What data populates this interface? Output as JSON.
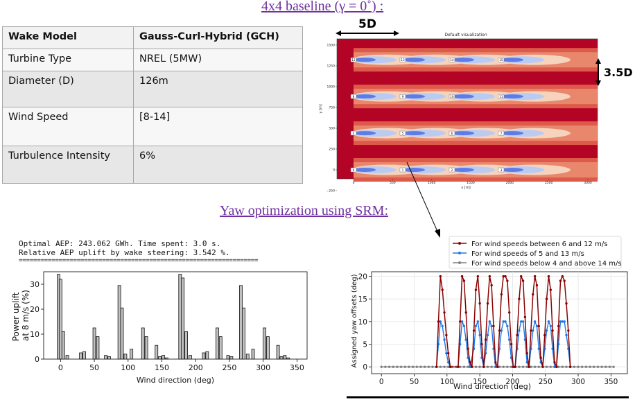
{
  "header": {
    "baseline_title": "4x4 baseline (γ  = 0˚) :",
    "yaw_title": "Yaw optimization using SRM:"
  },
  "params_table": {
    "rows": [
      {
        "label": "Wake Model",
        "value": "Gauss-Curl-Hybrid (GCH)"
      },
      {
        "label": "Turbine Type",
        "value": "NREL (5MW)"
      },
      {
        "label": "Diameter (D)",
        "value": "126m"
      },
      {
        "label": "Wind Speed",
        "value": "[8-14]"
      },
      {
        "label": "Turbulence Intensity",
        "value": "6%"
      }
    ]
  },
  "flow_viz": {
    "title": "Default visualization",
    "spacing_x_label": "5D",
    "spacing_y_label": "3.5D",
    "xlabel": "x [m]",
    "ylabel": "y [m]",
    "x_ticks": [
      "0",
      "500",
      "1000",
      "1500",
      "2000",
      "2500",
      "3000"
    ],
    "y_ticks": [
      "1500",
      "1250",
      "1000",
      "750",
      "500",
      "250",
      "0",
      "−250"
    ],
    "turbine_rows": [
      {
        "y": 1323,
        "labels": [
          "12",
          "13",
          "14",
          "15"
        ]
      },
      {
        "y": 882,
        "labels": [
          "8",
          "9",
          "10",
          "11"
        ]
      },
      {
        "y": 441,
        "labels": [
          "4",
          "5",
          "6",
          "7"
        ]
      },
      {
        "y": 0,
        "labels": [
          "0",
          "1",
          "2",
          "3"
        ]
      }
    ],
    "turbine_x": [
      0,
      630,
      1260,
      1890
    ],
    "colors": {
      "background": "#b40426",
      "wake_light": "#f4c6a8",
      "wake_blue": "#5d7ce6"
    }
  },
  "console": {
    "line1": "Optimal AEP: 243.062 GWh. Time spent: 3.0 s.",
    "line2": "Relative AEP uplift by wake steering: 3.542 %.",
    "separator": "=================================================================="
  },
  "chart_data": [
    {
      "type": "bar",
      "xlabel": "Wind direction (deg)",
      "ylabel": "Power uplift\nat 8 m/s (%)",
      "xlim": [
        -25,
        365
      ],
      "ylim": [
        0,
        35
      ],
      "x_ticks": [
        0,
        50,
        100,
        150,
        200,
        250,
        300,
        350
      ],
      "y_ticks": [
        0,
        10,
        20,
        30
      ],
      "bars": [
        {
          "x": -3,
          "v": 34
        },
        {
          "x": 0,
          "v": 32
        },
        {
          "x": 4,
          "v": 11
        },
        {
          "x": 10,
          "v": 1.5
        },
        {
          "x": 30,
          "v": 2.5
        },
        {
          "x": 35,
          "v": 3
        },
        {
          "x": 50,
          "v": 12.5
        },
        {
          "x": 55,
          "v": 9
        },
        {
          "x": 67,
          "v": 1.5
        },
        {
          "x": 72,
          "v": 1
        },
        {
          "x": 87,
          "v": 29.5
        },
        {
          "x": 91,
          "v": 20.5
        },
        {
          "x": 96,
          "v": 2
        },
        {
          "x": 105,
          "v": 4
        },
        {
          "x": 122,
          "v": 12.5
        },
        {
          "x": 127,
          "v": 9
        },
        {
          "x": 142,
          "v": 5.5
        },
        {
          "x": 147,
          "v": 1
        },
        {
          "x": 152,
          "v": 1.5
        },
        {
          "x": 157,
          "v": 0.5
        },
        {
          "x": 177,
          "v": 34
        },
        {
          "x": 181,
          "v": 32.5
        },
        {
          "x": 186,
          "v": 11
        },
        {
          "x": 192,
          "v": 1.5
        },
        {
          "x": 212,
          "v": 2.5
        },
        {
          "x": 217,
          "v": 3
        },
        {
          "x": 232,
          "v": 12.5
        },
        {
          "x": 237,
          "v": 9
        },
        {
          "x": 248,
          "v": 1.5
        },
        {
          "x": 253,
          "v": 1
        },
        {
          "x": 267,
          "v": 29.5
        },
        {
          "x": 271,
          "v": 20.5
        },
        {
          "x": 277,
          "v": 2
        },
        {
          "x": 285,
          "v": 4
        },
        {
          "x": 302,
          "v": 12.5
        },
        {
          "x": 307,
          "v": 9
        },
        {
          "x": 322,
          "v": 5.5
        },
        {
          "x": 327,
          "v": 1
        },
        {
          "x": 332,
          "v": 1.5
        },
        {
          "x": 337,
          "v": 0.5
        }
      ]
    },
    {
      "type": "line",
      "xlabel": "Wind direction (deg)",
      "ylabel": "Assigned yaw offsets (deg)",
      "xlim": [
        -15,
        375
      ],
      "ylim": [
        -1.5,
        21
      ],
      "x_ticks": [
        0,
        50,
        100,
        150,
        200,
        250,
        300,
        350
      ],
      "y_ticks": [
        0,
        5,
        10,
        15,
        20
      ],
      "legend_position": "top-right",
      "series": [
        {
          "name": "For wind speeds between 6 and 12 m/s",
          "color": "#8b0000",
          "points": [
            [
              84,
              0
            ],
            [
              87,
              10
            ],
            [
              90,
              20
            ],
            [
              93,
              17
            ],
            [
              96,
              12
            ],
            [
              99,
              7
            ],
            [
              102,
              3
            ],
            [
              105,
              0
            ],
            [
              117,
              0
            ],
            [
              120,
              10
            ],
            [
              123,
              20
            ],
            [
              126,
              19
            ],
            [
              129,
              12
            ],
            [
              132,
              4
            ],
            [
              135,
              1
            ],
            [
              138,
              0
            ],
            [
              141,
              8
            ],
            [
              144,
              17
            ],
            [
              147,
              20
            ],
            [
              150,
              14
            ],
            [
              153,
              5
            ],
            [
              156,
              0
            ],
            [
              159,
              6
            ],
            [
              162,
              14
            ],
            [
              165,
              20
            ],
            [
              168,
              18
            ],
            [
              171,
              9
            ],
            [
              174,
              1
            ],
            [
              177,
              0
            ],
            [
              180,
              8
            ],
            [
              183,
              16
            ],
            [
              186,
              20
            ],
            [
              189,
              20
            ],
            [
              192,
              19
            ],
            [
              195,
              12
            ],
            [
              198,
              5
            ],
            [
              201,
              0
            ],
            [
              204,
              0
            ],
            [
              207,
              7
            ],
            [
              210,
              15
            ],
            [
              213,
              20
            ],
            [
              216,
              19
            ],
            [
              219,
              11
            ],
            [
              222,
              3
            ],
            [
              225,
              0
            ],
            [
              228,
              8
            ],
            [
              231,
              16
            ],
            [
              234,
              20
            ],
            [
              237,
              18
            ],
            [
              240,
              9
            ],
            [
              243,
              2
            ],
            [
              246,
              0
            ],
            [
              249,
              7
            ],
            [
              252,
              15
            ],
            [
              255,
              20
            ],
            [
              258,
              17
            ],
            [
              261,
              8
            ],
            [
              264,
              1
            ],
            [
              267,
              0
            ],
            [
              270,
              9
            ],
            [
              273,
              19
            ],
            [
              276,
              20
            ],
            [
              279,
              19
            ],
            [
              282,
              14
            ],
            [
              285,
              8
            ],
            [
              288,
              0
            ]
          ]
        },
        {
          "name": "For wind speeds of 5 and 13 m/s",
          "color": "#1f77e4",
          "points": [
            [
              84,
              0
            ],
            [
              87,
              5
            ],
            [
              90,
              10
            ],
            [
              93,
              9
            ],
            [
              96,
              6
            ],
            [
              99,
              3
            ],
            [
              102,
              1
            ],
            [
              105,
              0
            ],
            [
              117,
              0
            ],
            [
              120,
              5
            ],
            [
              123,
              10
            ],
            [
              126,
              9
            ],
            [
              129,
              6
            ],
            [
              132,
              2
            ],
            [
              135,
              0
            ],
            [
              141,
              4
            ],
            [
              144,
              9
            ],
            [
              147,
              10
            ],
            [
              150,
              7
            ],
            [
              153,
              2
            ],
            [
              156,
              0
            ],
            [
              159,
              3
            ],
            [
              162,
              7
            ],
            [
              165,
              10
            ],
            [
              168,
              9
            ],
            [
              171,
              4
            ],
            [
              174,
              0
            ],
            [
              177,
              0
            ],
            [
              180,
              4
            ],
            [
              183,
              8
            ],
            [
              186,
              10
            ],
            [
              189,
              10
            ],
            [
              192,
              9
            ],
            [
              195,
              6
            ],
            [
              198,
              2
            ],
            [
              201,
              0
            ],
            [
              204,
              0
            ],
            [
              207,
              4
            ],
            [
              210,
              8
            ],
            [
              213,
              10
            ],
            [
              216,
              10
            ],
            [
              219,
              6
            ],
            [
              222,
              1
            ],
            [
              225,
              0
            ],
            [
              228,
              4
            ],
            [
              231,
              8
            ],
            [
              234,
              10
            ],
            [
              237,
              9
            ],
            [
              240,
              4
            ],
            [
              243,
              1
            ],
            [
              246,
              0
            ],
            [
              249,
              4
            ],
            [
              252,
              8
            ],
            [
              255,
              10
            ],
            [
              258,
              9
            ],
            [
              261,
              4
            ],
            [
              264,
              0
            ],
            [
              267,
              0
            ],
            [
              270,
              5
            ],
            [
              273,
              10
            ],
            [
              276,
              10
            ],
            [
              279,
              10
            ],
            [
              282,
              7
            ],
            [
              285,
              4
            ],
            [
              288,
              0
            ]
          ]
        },
        {
          "name": "For wind speeds below 4 and above 14 m/s",
          "color": "#808080",
          "flat_from": 0,
          "flat_to": 357,
          "flat_step": 6
        }
      ]
    }
  ]
}
